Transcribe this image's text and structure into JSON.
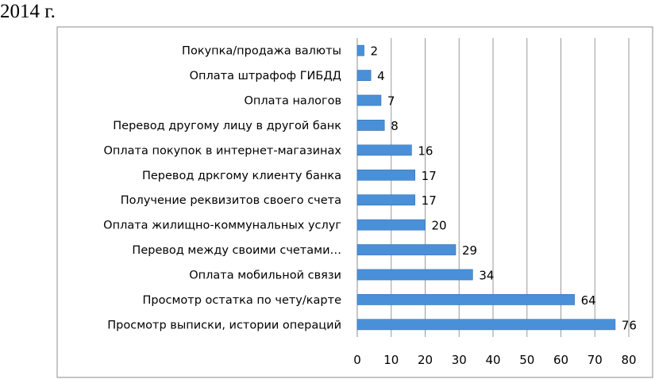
{
  "heading": "2014 г.",
  "chart_data": {
    "type": "bar",
    "orientation": "horizontal",
    "title": "",
    "xlabel": "",
    "ylabel": "",
    "categories": [
      "Покупка/продажа валюты",
      "Оплата штрафоф ГИБДД",
      "Оплата налогов",
      "Перевод другому лицу в другой банк",
      "Оплата покупок в интернет-магазинах",
      "Перевод дркгому клиенту банка",
      "Получение реквизитов своего счета",
      "Оплата жилищно-коммунальных услуг",
      "Перевод между своими счетами…",
      "Оплата мобильной связи",
      "Просмотр остатка по чету/карте",
      "Просмотр выписки, истории операций"
    ],
    "values": [
      2,
      4,
      7,
      8,
      16,
      17,
      17,
      20,
      29,
      34,
      64,
      76
    ],
    "xlim": [
      0,
      80
    ],
    "xticks": [
      0,
      10,
      20,
      30,
      40,
      50,
      60,
      70,
      80
    ],
    "grid": "vertical",
    "legend": "none",
    "bar_color": "#4a90d9",
    "bar_border_color": "#2f6fb0",
    "gridline_color": "#9a9a9a",
    "frame_color": "#8c8c8c"
  }
}
